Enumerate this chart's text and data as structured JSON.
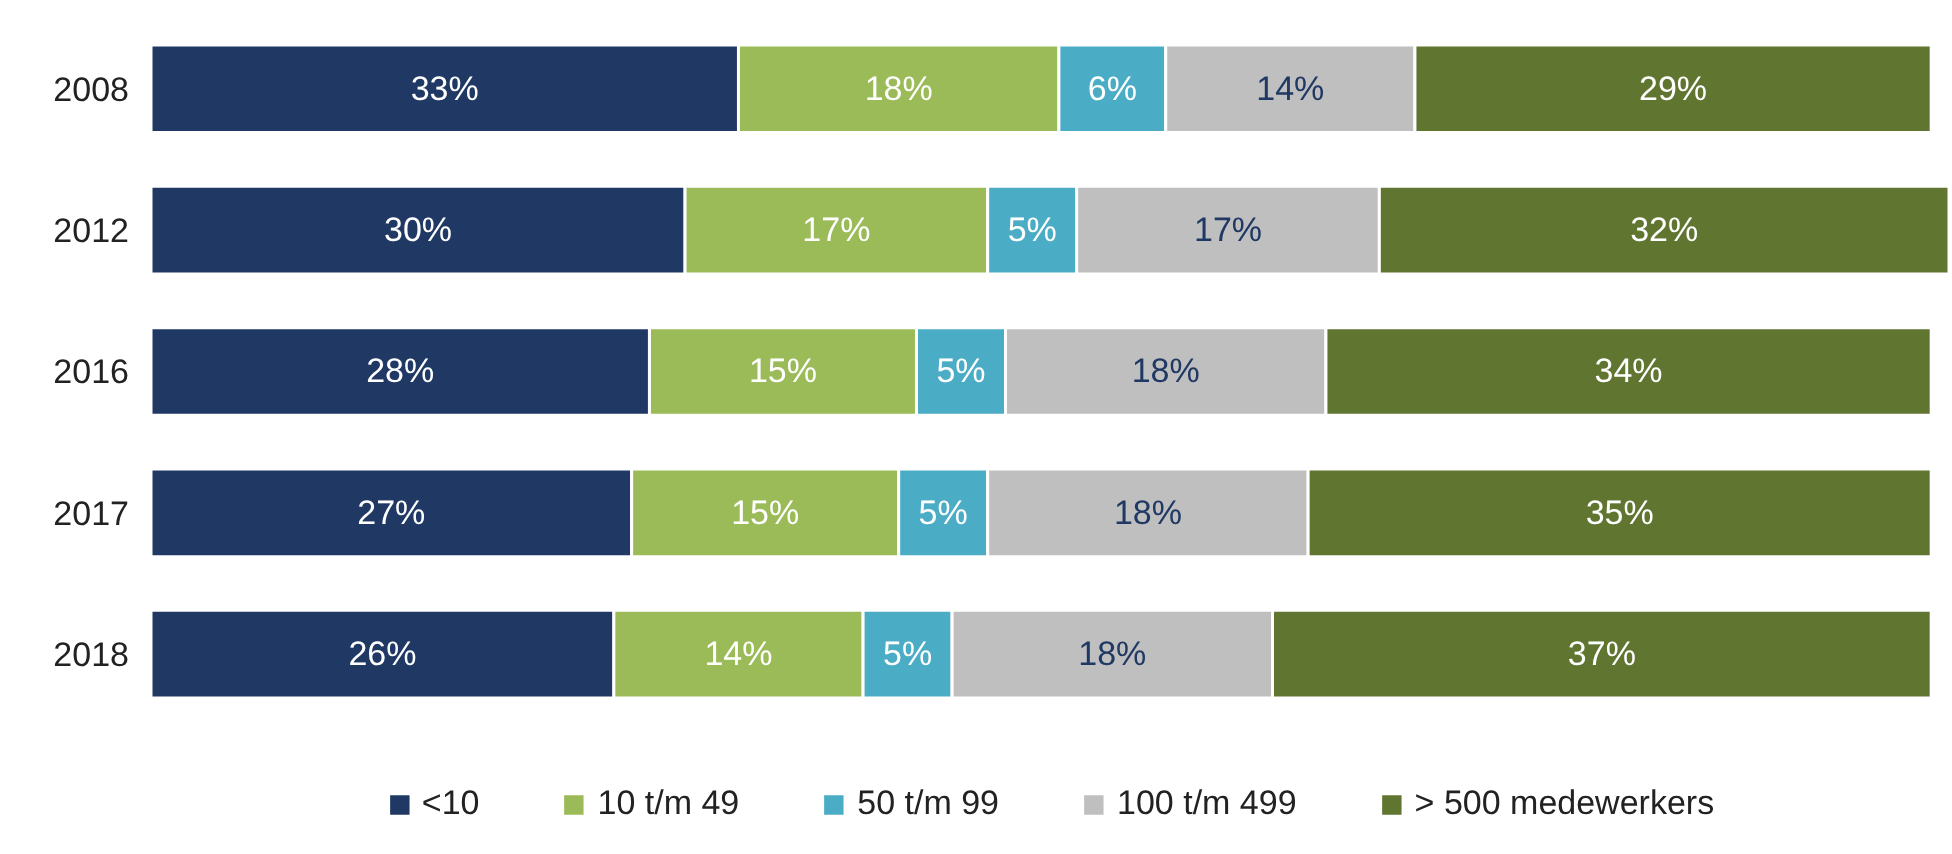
{
  "chart_data": {
    "type": "bar",
    "orientation": "horizontal",
    "stacked": true,
    "legend": "bottom",
    "tick_labels": "y",
    "categories": [
      "2008",
      "2012",
      "2016",
      "2017",
      "2018"
    ],
    "series": [
      {
        "name": "<10",
        "color": "#1f3864",
        "values": [
          33,
          30,
          28,
          27,
          26
        ],
        "value_labels": [
          "33%",
          "30%",
          "28%",
          "27%",
          "26%"
        ]
      },
      {
        "name": "10 t/m 49",
        "color": "#9bbb59",
        "values": [
          18,
          17,
          15,
          15,
          14
        ],
        "value_labels": [
          "18%",
          "17%",
          "15%",
          "15%",
          "14%"
        ]
      },
      {
        "name": "50 t/m 99",
        "color": "#4bacc6",
        "values": [
          6,
          5,
          5,
          5,
          5
        ],
        "value_labels": [
          "6%",
          "5%",
          "5%",
          "5%",
          "5%"
        ]
      },
      {
        "name": "100 t/m 499",
        "color": "#bfbfbf",
        "values": [
          14,
          17,
          18,
          18,
          18
        ],
        "value_labels": [
          "14%",
          "17%",
          "18%",
          "18%",
          "18%"
        ]
      },
      {
        "name": "> 500 medewerkers",
        "color": "#5f7530",
        "values": [
          29,
          32,
          34,
          35,
          37
        ],
        "value_labels": [
          "29%",
          "32%",
          "34%",
          "35%",
          "37%"
        ]
      }
    ]
  }
}
